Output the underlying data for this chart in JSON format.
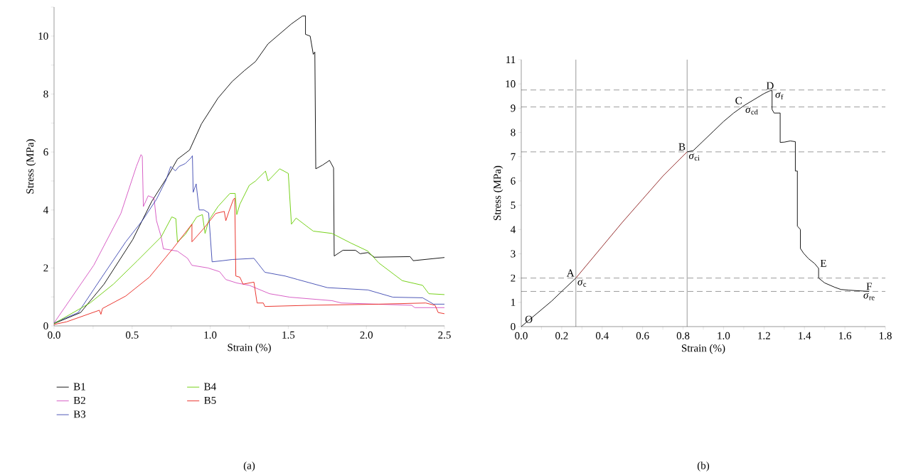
{
  "chart_data": [
    {
      "type": "line",
      "xlabel": "Strain (%)",
      "ylabel": "Stress (MPa)",
      "xlim": [
        0,
        2.5
      ],
      "ylim": [
        0,
        11
      ],
      "xticks": [
        {
          "value": 0,
          "label": "0.0"
        },
        {
          "value": 0.25,
          "label": null
        },
        {
          "value": 0.5,
          "label": "0.5"
        },
        {
          "value": 0.75,
          "label": null
        },
        {
          "value": 1,
          "label": "1.0"
        },
        {
          "value": 1.25,
          "label": null
        },
        {
          "value": 1.5,
          "label": "1.5"
        },
        {
          "value": 1.75,
          "label": null
        },
        {
          "value": 2,
          "label": "2.0"
        },
        {
          "value": 2.25,
          "label": null
        },
        {
          "value": 2.5,
          "label": "2.5"
        }
      ],
      "yticks": [
        0,
        {
          "value": 1,
          "label": null
        },
        2,
        {
          "value": 3,
          "label": null
        },
        4,
        {
          "value": 5,
          "label": null
        },
        6,
        {
          "value": 7,
          "label": null
        },
        8,
        {
          "value": 9,
          "label": null
        },
        10,
        {
          "value": 11,
          "label": null
        }
      ],
      "legend": "bottom",
      "marker": "none",
      "line_style": "solid",
      "annotations": [
        "(a)"
      ],
      "series": [
        {
          "name": "B1",
          "color": "#000000",
          "x": [
            0,
            0.17,
            0.32,
            0.504,
            0.625,
            0.73,
            0.79,
            0.868,
            0.944,
            1.05,
            1.14,
            1.217,
            1.29,
            1.37,
            1.52,
            1.59,
            1.61,
            1.61,
            1.64,
            1.66,
            1.67,
            1.676,
            1.72,
            1.764,
            1.79,
            1.794,
            1.85,
            1.93,
            1.96,
            2.01,
            2.05,
            2.28,
            2.3,
            2.5
          ],
          "values": [
            0.08,
            0.46,
            1.44,
            2.98,
            4.29,
            5.18,
            5.75,
            6.07,
            6.97,
            7.86,
            8.43,
            8.8,
            9.12,
            9.73,
            10.42,
            10.69,
            10.7,
            10.06,
            10.0,
            9.37,
            9.45,
            5.42,
            5.55,
            5.71,
            5.45,
            2.41,
            2.61,
            2.61,
            2.49,
            2.53,
            2.37,
            2.39,
            2.25,
            2.36
          ]
        },
        {
          "name": "B2",
          "color": "#d44fc0",
          "x": [
            0,
            0.254,
            0.428,
            0.527,
            0.557,
            0.565,
            0.572,
            0.603,
            0.64,
            0.656,
            0.686,
            0.7,
            0.79,
            0.855,
            0.883,
            0.985,
            1.06,
            1.1,
            1.17,
            1.25,
            1.38,
            1.51,
            1.78,
            1.84,
            2.29,
            2.31,
            2.5
          ],
          "values": [
            0.1,
            2.09,
            3.88,
            5.5,
            5.91,
            5.85,
            4.12,
            4.49,
            4.41,
            3.63,
            3.07,
            2.66,
            2.58,
            2.33,
            2.09,
            2.0,
            1.87,
            1.6,
            1.48,
            1.4,
            1.11,
            0.99,
            0.87,
            0.79,
            0.71,
            0.63,
            0.63
          ]
        },
        {
          "name": "B3",
          "color": "#3b46b0",
          "x": [
            0,
            0.155,
            0.306,
            0.459,
            0.565,
            0.656,
            0.716,
            0.747,
            0.777,
            0.8,
            0.84,
            0.876,
            0.886,
            0.891,
            0.91,
            0.929,
            0.96,
            0.99,
            1.012,
            1.08,
            1.14,
            1.28,
            1.35,
            1.48,
            1.56,
            1.75,
            2.01,
            2.17,
            2.36,
            2.43,
            2.5
          ],
          "values": [
            0.1,
            0.46,
            1.68,
            2.9,
            3.63,
            4.37,
            5.02,
            5.5,
            5.35,
            5.5,
            5.6,
            5.79,
            5.87,
            4.61,
            4.9,
            4.0,
            4.0,
            3.9,
            2.21,
            2.25,
            2.29,
            2.33,
            1.85,
            1.72,
            1.6,
            1.32,
            1.24,
            0.99,
            0.97,
            0.75,
            0.75
          ]
        },
        {
          "name": "B4",
          "color": "#66cc00",
          "x": [
            0,
            0.23,
            0.38,
            0.534,
            0.686,
            0.754,
            0.78,
            0.79,
            0.84,
            0.914,
            0.95,
            0.967,
            0.99,
            1.05,
            1.126,
            1.16,
            1.17,
            1.19,
            1.25,
            1.29,
            1.354,
            1.37,
            1.445,
            1.5,
            1.52,
            1.55,
            1.63,
            1.66,
            1.78,
            1.9,
            2.01,
            2.08,
            2.23,
            2.36,
            2.4,
            2.5
          ],
          "values": [
            0.08,
            0.79,
            1.44,
            2.25,
            3.07,
            3.76,
            3.7,
            2.9,
            3.15,
            3.76,
            3.84,
            3.19,
            3.63,
            4.12,
            4.57,
            4.57,
            3.84,
            4.2,
            4.85,
            5.0,
            5.34,
            5.0,
            5.42,
            5.26,
            3.51,
            3.72,
            3.39,
            3.27,
            3.19,
            2.86,
            2.58,
            2.17,
            1.56,
            1.4,
            1.11,
            1.08
          ]
        },
        {
          "name": "B5",
          "color": "#e8231b",
          "x": [
            0,
            0.08,
            0.29,
            0.3,
            0.31,
            0.459,
            0.61,
            0.76,
            0.883,
            0.883,
            0.96,
            1.035,
            1.09,
            1.1,
            1.12,
            1.149,
            1.157,
            1.164,
            1.19,
            1.21,
            1.28,
            1.3,
            1.34,
            1.35,
            1.63,
            2.08,
            2.38,
            2.44,
            2.46,
            2.5
          ],
          "values": [
            0.05,
            0.14,
            0.54,
            0.4,
            0.6,
            1.03,
            1.68,
            2.66,
            3.51,
            2.9,
            3.37,
            3.88,
            3.95,
            3.63,
            3.95,
            4.37,
            4.41,
            1.72,
            1.68,
            1.44,
            1.51,
            0.79,
            0.79,
            0.67,
            0.71,
            0.75,
            0.79,
            0.71,
            0.46,
            0.42
          ]
        }
      ]
    },
    {
      "type": "line",
      "xlabel": "Strain (%)",
      "ylabel": "Stress (MPa)",
      "xlim": [
        0,
        1.8
      ],
      "ylim": [
        0,
        11
      ],
      "xticks": [
        {
          "value": 0,
          "label": "0.0"
        },
        {
          "value": 0.1,
          "label": null
        },
        {
          "value": 0.2,
          "label": "0.2"
        },
        {
          "value": 0.3,
          "label": null
        },
        {
          "value": 0.4,
          "label": "0.4"
        },
        {
          "value": 0.5,
          "label": null
        },
        {
          "value": 0.6,
          "label": "0.6"
        },
        {
          "value": 0.7,
          "label": null
        },
        {
          "value": 0.8,
          "label": "0.8"
        },
        {
          "value": 0.9,
          "label": null
        },
        {
          "value": 1,
          "label": "1.0"
        },
        {
          "value": 1.1,
          "label": null
        },
        {
          "value": 1.2,
          "label": "1.2"
        },
        {
          "value": 1.3,
          "label": null
        },
        {
          "value": 1.4,
          "label": "1.4"
        },
        {
          "value": 1.5,
          "label": null
        },
        {
          "value": 1.6,
          "label": "1.6"
        },
        {
          "value": 1.7,
          "label": null
        },
        {
          "value": 1.8,
          "label": "1.8"
        }
      ],
      "yticks": [
        0,
        1,
        2,
        3,
        4,
        5,
        6,
        7,
        8,
        9,
        10,
        11
      ],
      "marker": "none",
      "line_style": "solid",
      "ref_lines": [
        {
          "axis": "y",
          "value": 9.75,
          "line_style": "dashed"
        },
        {
          "axis": "y",
          "value": 9.05,
          "line_style": "dashed"
        },
        {
          "axis": "y",
          "value": 7.2,
          "line_style": "dashed"
        },
        {
          "axis": "y",
          "value": 2.0,
          "line_style": "dashed"
        },
        {
          "axis": "y",
          "value": 1.45,
          "line_style": "dashed"
        },
        {
          "axis": "x",
          "value": 0.27,
          "line_style": "solid"
        },
        {
          "axis": "x",
          "value": 0.82,
          "line_style": "solid"
        }
      ],
      "annotations": [
        {
          "text": "O",
          "x": 0,
          "y": 0
        },
        {
          "text": "A",
          "x": 0.27,
          "y": 2.0
        },
        {
          "text": "*σ*$_{c}$",
          "x": 0.27,
          "y": 2.0
        },
        {
          "text": "B",
          "x": 0.82,
          "y": 7.2
        },
        {
          "text": "*σ*$_{ci}$",
          "x": 0.82,
          "y": 7.2
        },
        {
          "text": "C",
          "x": 1.1,
          "y": 9.1
        },
        {
          "text": "*σ*$_{cd}$",
          "x": 1.1,
          "y": 9.1
        },
        {
          "text": "D",
          "x": 1.23,
          "y": 9.72
        },
        {
          "text": "*σ*$_{f}$",
          "x": 1.23,
          "y": 9.72
        },
        {
          "text": "E",
          "x": 1.47,
          "y": 2.4
        },
        {
          "text": "F",
          "x": 1.72,
          "y": 1.45
        },
        {
          "text": "*σ*$_{re}$",
          "x": 1.72,
          "y": 1.45
        },
        "(b)"
      ],
      "series": [
        {
          "color": "#000000",
          "x": [
            0,
            0.05,
            0.1,
            0.15,
            0.2,
            0.27
          ],
          "values": [
            0,
            0.35,
            0.7,
            1.05,
            1.45,
            2.0
          ]
        },
        {
          "color": "#8b1a1a",
          "x": [
            0.27,
            0.4,
            0.5,
            0.6,
            0.7,
            0.82
          ],
          "values": [
            2.0,
            3.3,
            4.3,
            5.25,
            6.2,
            7.2
          ]
        },
        {
          "color": "#000000",
          "x": [
            0.82,
            0.85,
            0.9,
            0.95,
            1.0,
            1.05,
            1.1,
            1.15,
            1.2,
            1.23,
            1.24,
            1.24,
            1.25,
            1.28,
            1.28,
            1.3,
            1.33,
            1.355,
            1.355,
            1.365,
            1.365,
            1.38,
            1.38,
            1.396,
            1.42,
            1.45,
            1.47,
            1.47,
            1.5,
            1.55,
            1.58,
            1.62,
            1.72
          ],
          "values": [
            7.2,
            7.25,
            7.65,
            8.05,
            8.45,
            8.8,
            9.1,
            9.35,
            9.6,
            9.72,
            9.72,
            8.95,
            8.8,
            8.8,
            7.59,
            7.6,
            7.65,
            7.62,
            6.41,
            6.41,
            4.14,
            4.0,
            3.22,
            3.02,
            2.8,
            2.6,
            2.4,
            2.0,
            1.8,
            1.62,
            1.53,
            1.5,
            1.45
          ]
        }
      ]
    }
  ]
}
